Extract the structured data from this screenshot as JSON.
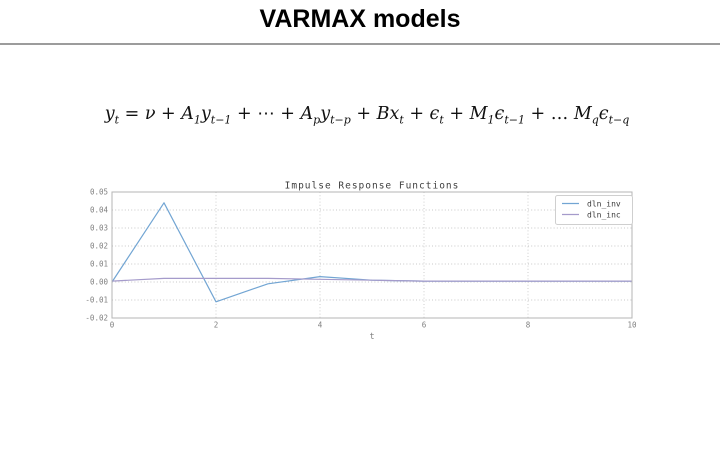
{
  "slide": {
    "title": "VARMAX models"
  },
  "formula": {
    "tokens": [
      {
        "b": "y",
        "s": "t"
      },
      {
        "o": " = "
      },
      {
        "b": "ν"
      },
      {
        "o": " + "
      },
      {
        "b": "A",
        "s": "1"
      },
      {
        "b": "y",
        "s": "t−1"
      },
      {
        "o": " + ⋯ + "
      },
      {
        "b": "A",
        "s": "p"
      },
      {
        "b": "y",
        "s": "t−p"
      },
      {
        "o": " + "
      },
      {
        "b": "B"
      },
      {
        "b": "x",
        "s": "t"
      },
      {
        "o": " + "
      },
      {
        "b": "ϵ",
        "s": "t"
      },
      {
        "o": " + "
      },
      {
        "b": "M",
        "s": "1"
      },
      {
        "b": "ϵ",
        "s": "t−1"
      },
      {
        "o": " + … "
      },
      {
        "b": "M",
        "s": "q"
      },
      {
        "b": "ϵ",
        "s": "t−q"
      }
    ]
  },
  "chart_data": {
    "type": "line",
    "title": "Impulse Response Functions",
    "xlabel": "t",
    "ylabel": "",
    "x": [
      0,
      1,
      2,
      3,
      4,
      5,
      6,
      7,
      8,
      9,
      10
    ],
    "series": [
      {
        "name": "dln_inv",
        "color": "#72a5d3",
        "values": [
          0.0,
          0.044,
          -0.011,
          -0.001,
          0.003,
          0.001,
          0.0005,
          0.0005,
          0.0005,
          0.0005,
          0.0005
        ]
      },
      {
        "name": "dln_inc",
        "color": "#a59bcb",
        "values": [
          0.0005,
          0.002,
          0.002,
          0.002,
          0.0015,
          0.001,
          0.0005,
          0.0005,
          0.0005,
          0.0005,
          0.0005
        ]
      }
    ],
    "xlim": [
      0,
      10
    ],
    "ylim": [
      -0.02,
      0.05
    ],
    "xticks": [
      0,
      2,
      4,
      6,
      8,
      10
    ],
    "yticks": [
      0.05,
      0.04,
      0.03,
      0.02,
      0.01,
      0.0,
      -0.01,
      -0.02
    ],
    "grid": true,
    "legend_position": "upper right"
  },
  "colors": {
    "divider": "#9c9c9c",
    "plot_border": "#b5b5b5",
    "gridline": "#c8c8c8",
    "tick_label": "#7f7f7f",
    "chart_title": "#404040",
    "legend_border": "#cfcfcf"
  }
}
